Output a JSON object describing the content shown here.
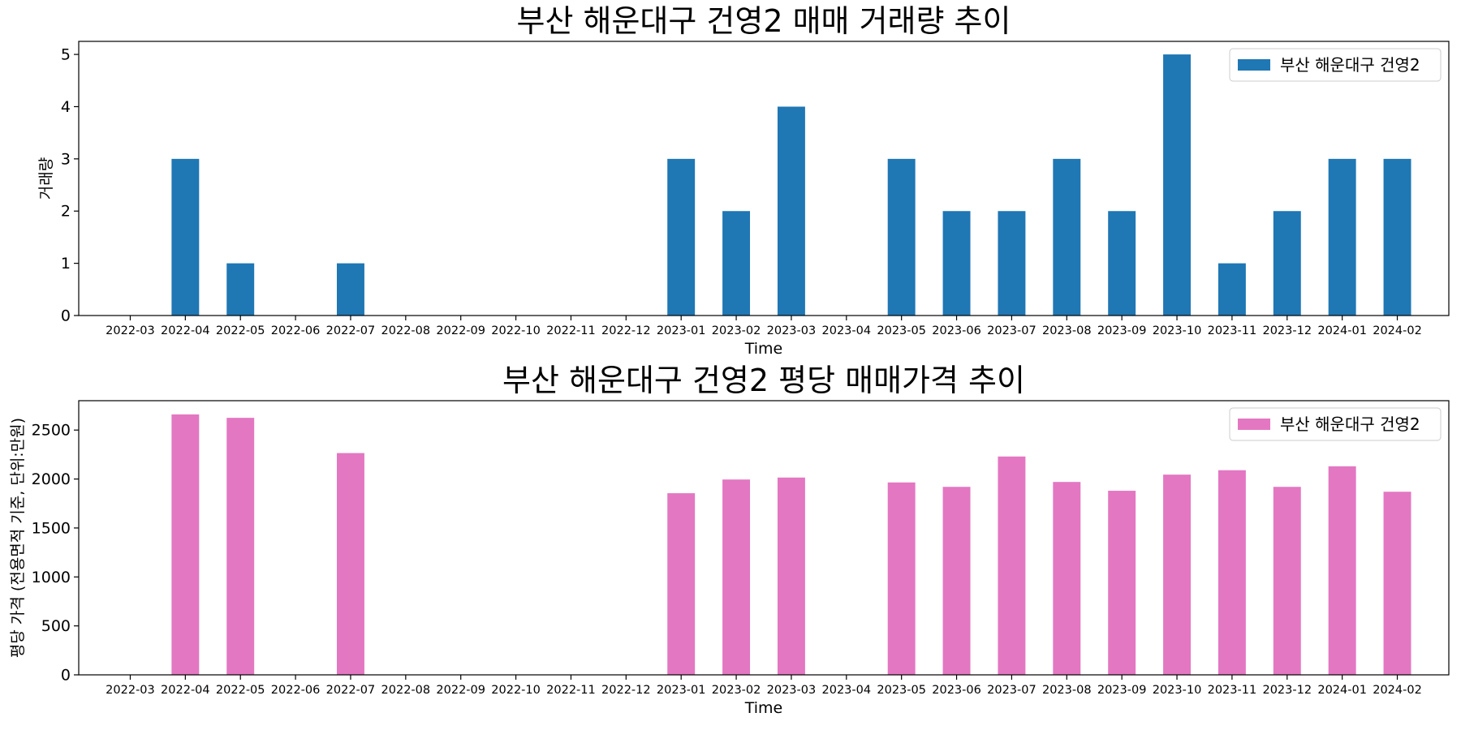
{
  "chart_data": [
    {
      "type": "bar",
      "title": "부산 해운대구 건영2 매매 거래량 추이",
      "xlabel": "Time",
      "ylabel": "거래량",
      "categories": [
        "2022-03",
        "2022-04",
        "2022-05",
        "2022-06",
        "2022-07",
        "2022-08",
        "2022-09",
        "2022-10",
        "2022-11",
        "2022-12",
        "2023-01",
        "2023-02",
        "2023-03",
        "2023-04",
        "2023-05",
        "2023-06",
        "2023-07",
        "2023-08",
        "2023-09",
        "2023-10",
        "2023-11",
        "2023-12",
        "2024-01",
        "2024-02"
      ],
      "series": [
        {
          "name": "부산 해운대구 건영2",
          "color": "#1f77b4",
          "values": [
            0,
            3,
            1,
            0,
            1,
            0,
            0,
            0,
            0,
            0,
            3,
            2,
            4,
            0,
            3,
            2,
            2,
            3,
            2,
            5,
            1,
            2,
            3,
            3
          ]
        }
      ],
      "ylim": [
        0,
        5.25
      ],
      "yticks": [
        0,
        1,
        2,
        3,
        4,
        5
      ],
      "legend": "top-right",
      "grid": false
    },
    {
      "type": "bar",
      "title": "부산 해운대구 건영2 평당 매매가격 추이",
      "xlabel": "Time",
      "ylabel": "평당 가격 (전용면적 기준, 단위:만원)",
      "categories": [
        "2022-03",
        "2022-04",
        "2022-05",
        "2022-06",
        "2022-07",
        "2022-08",
        "2022-09",
        "2022-10",
        "2022-11",
        "2022-12",
        "2023-01",
        "2023-02",
        "2023-03",
        "2023-04",
        "2023-05",
        "2023-06",
        "2023-07",
        "2023-08",
        "2023-09",
        "2023-10",
        "2023-11",
        "2023-12",
        "2024-01",
        "2024-02"
      ],
      "series": [
        {
          "name": "부산 해운대구 건영2",
          "color": "#e377c2",
          "values": [
            0,
            2660,
            2625,
            0,
            2265,
            0,
            0,
            0,
            0,
            0,
            1855,
            1995,
            2015,
            0,
            1965,
            1920,
            2230,
            1970,
            1880,
            2045,
            2090,
            1920,
            2130,
            1870
          ]
        }
      ],
      "ylim": [
        0,
        2800
      ],
      "yticks": [
        0,
        500,
        1000,
        1500,
        2000,
        2500
      ],
      "legend": "top-right",
      "grid": false
    }
  ]
}
